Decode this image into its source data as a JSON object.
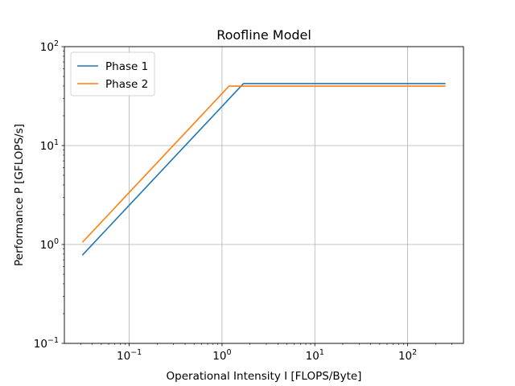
{
  "chart_data": {
    "type": "line",
    "title": "Roofline Model",
    "xlabel": "Operational Intensity I [FLOPS/Byte]",
    "ylabel": "Performance P [GFLOPS/s]",
    "xscale": "log",
    "yscale": "log",
    "xlim": [
      0.02,
      400
    ],
    "ylim": [
      0.1,
      100
    ],
    "x_ticks": [
      {
        "value": 0.1,
        "base": "10",
        "exp": "−1"
      },
      {
        "value": 1,
        "base": "10",
        "exp": "0"
      },
      {
        "value": 10,
        "base": "10",
        "exp": "1"
      },
      {
        "value": 100,
        "base": "10",
        "exp": "2"
      }
    ],
    "y_ticks": [
      {
        "value": 0.1,
        "base": "10",
        "exp": "−1"
      },
      {
        "value": 1,
        "base": "10",
        "exp": "0"
      },
      {
        "value": 10,
        "base": "10",
        "exp": "1"
      },
      {
        "value": 100,
        "base": "10",
        "exp": "2"
      }
    ],
    "grid": true,
    "legend_position": "top-left",
    "series": [
      {
        "name": "Phase 1",
        "color": "#1f77b4",
        "x": [
          0.03125,
          1.7,
          256
        ],
        "y": [
          0.78,
          42.3,
          42.3
        ]
      },
      {
        "name": "Phase 2",
        "color": "#ff7f0e",
        "x": [
          0.03125,
          1.19,
          256
        ],
        "y": [
          1.05,
          39.9,
          39.9
        ]
      }
    ]
  }
}
